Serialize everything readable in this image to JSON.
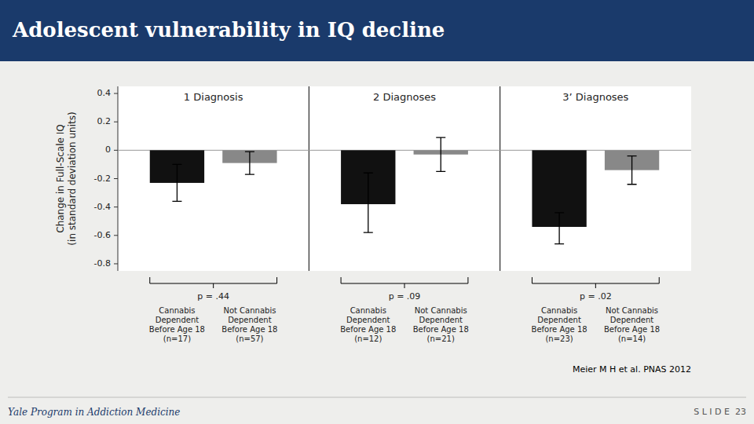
{
  "chart_data": {
    "type": "bar",
    "title": "Adolescent vulnerability in IQ decline",
    "ylabel": "Change in Full-Scale IQ\n(in standard deviation units)",
    "categories": [
      "Cannabis\nDependent\nBefore Age 18\n(n=17)",
      "Not Cannabis\nDependent\nBefore Age 18\n(n=57)",
      "Cannabis\nDependent\nBefore Age 18\n(n=12)",
      "Not Cannabis\nDependent\nBefore Age 18\n(n=21)",
      "Cannabis\nDependent\nBefore Age 18\n(n=23)",
      "Not Cannabis\nDependent\nBefore Age 18\n(n=14)"
    ],
    "values": [
      -0.23,
      -0.09,
      -0.38,
      -0.03,
      -0.54,
      -0.14
    ],
    "err_lo": [
      0.13,
      0.08,
      0.2,
      0.12,
      0.12,
      0.1
    ],
    "err_hi": [
      0.13,
      0.08,
      0.22,
      0.12,
      0.1,
      0.1
    ],
    "colors": [
      "#111111",
      "#888888",
      "#111111",
      "#888888",
      "#111111",
      "#888888"
    ],
    "group_labels": [
      "1 Diagnosis",
      "2 Diagnoses",
      "3’ Diagnoses"
    ],
    "p_values": [
      "p = .44",
      "p = .09",
      "p = .02"
    ],
    "ylim": [
      -0.85,
      0.45
    ],
    "yticks": [
      0.4,
      0.2,
      0.0,
      -0.2,
      -0.4,
      -0.6,
      -0.8
    ],
    "grid": false,
    "citation": "Meier M H et al. PNAS 2012",
    "footer_left": "Yale Program in Addiction Medicine",
    "footer_right": "S L I D E  23"
  }
}
